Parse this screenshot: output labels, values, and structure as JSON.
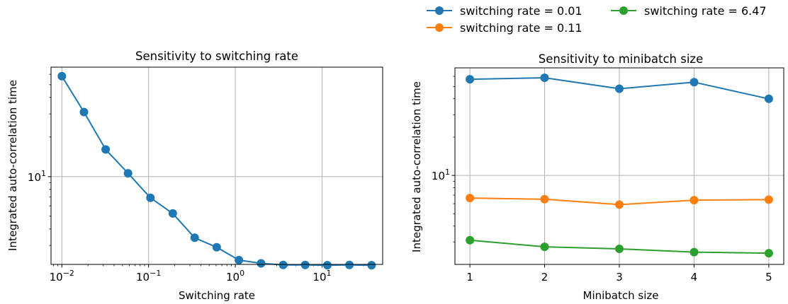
{
  "legend": {
    "placement": "top-right",
    "entries": [
      {
        "label": "switching rate = 0.01",
        "color": "#1f77b4"
      },
      {
        "label": "switching rate = 0.11",
        "color": "#ff7f0e"
      },
      {
        "label": "switching rate = 6.47",
        "color": "#2ca02c"
      }
    ]
  },
  "chart_data": [
    {
      "type": "line",
      "title": "Sensitivity to switching rate",
      "xlabel": "Switching rate",
      "ylabel": "Integrated auto-correlation time",
      "xscale": "log",
      "yscale": "log",
      "grid": true,
      "xlim": [
        0.0075,
        50
      ],
      "ylim": [
        2.15,
        68
      ],
      "x_ticks": [
        0.01,
        0.1,
        1,
        10
      ],
      "x_tick_labels": [
        {
          "base": "10",
          "exp": "−2"
        },
        {
          "base": "10",
          "exp": "−1"
        },
        {
          "base": "10",
          "exp": "0"
        },
        {
          "base": "10",
          "exp": "1"
        }
      ],
      "y_ticks": [
        10
      ],
      "y_tick_labels": [
        {
          "base": "10",
          "exp": "1"
        }
      ],
      "series": [
        {
          "color": "#1f77b4",
          "x": [
            0.01,
            0.018,
            0.032,
            0.058,
            0.105,
            0.19,
            0.34,
            0.61,
            1.1,
            1.98,
            3.56,
            6.4,
            11.5,
            20.7,
            37.3
          ],
          "y": [
            58.0,
            31.0,
            16.1,
            10.6,
            6.9,
            5.25,
            3.43,
            2.9,
            2.32,
            2.19,
            2.13,
            2.13,
            2.12,
            2.13,
            2.12
          ]
        }
      ]
    },
    {
      "type": "line",
      "title": "Sensitivity to minibatch size",
      "xlabel": "Minibatch size",
      "ylabel": "Integrated auto-correlation time",
      "xscale": "linear",
      "yscale": "log",
      "grid": true,
      "xlim": [
        0.8,
        5.2
      ],
      "ylim": [
        2.0,
        70
      ],
      "x_ticks": [
        1,
        2,
        3,
        4,
        5
      ],
      "x_tick_labels": [
        "1",
        "2",
        "3",
        "4",
        "5"
      ],
      "y_ticks": [
        10
      ],
      "y_tick_labels": [
        {
          "base": "10",
          "exp": "1"
        }
      ],
      "categories": [
        1,
        2,
        3,
        4,
        5
      ],
      "series": [
        {
          "name": "switching rate = 0.01",
          "color": "#1f77b4",
          "values": [
            57.0,
            58.5,
            48.0,
            54.0,
            40.0
          ]
        },
        {
          "name": "switching rate = 0.11",
          "color": "#ff7f0e",
          "values": [
            6.65,
            6.5,
            5.9,
            6.4,
            6.45
          ]
        },
        {
          "name": "switching rate = 6.47",
          "color": "#2ca02c",
          "values": [
            3.1,
            2.75,
            2.65,
            2.5,
            2.45
          ]
        }
      ]
    }
  ]
}
